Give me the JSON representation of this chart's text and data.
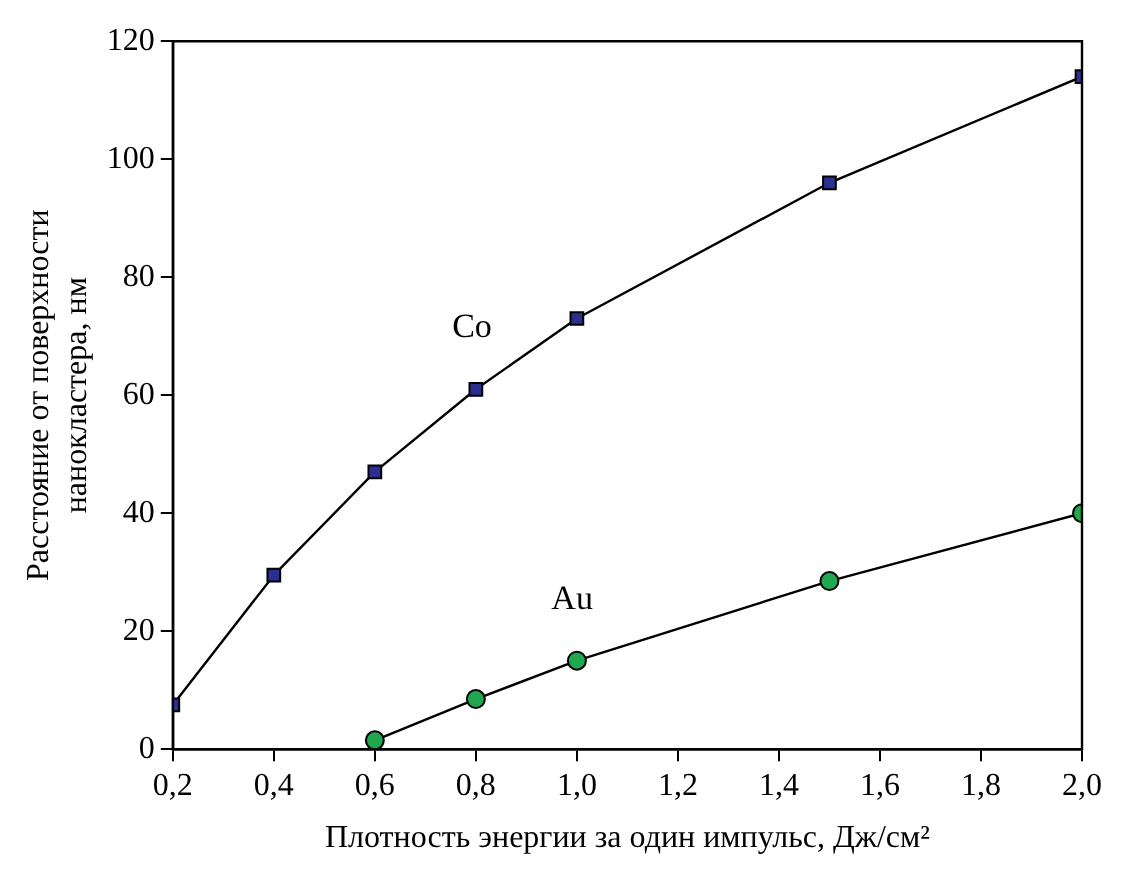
{
  "chart_data": {
    "type": "line",
    "xlabel": "Плотность энергии за один импульс, Дж/см²",
    "ylabel": "Расстояние от поверхности нанокластера, нм",
    "xlim": [
      0.2,
      2.0
    ],
    "xticks": [
      {
        "value": 0.2,
        "label": "0,2"
      },
      {
        "value": 0.4,
        "label": "0,4"
      },
      {
        "value": 0.6,
        "label": "0,6"
      },
      {
        "value": 0.8,
        "label": "0,8"
      },
      {
        "value": 1.0,
        "label": "1,0"
      },
      {
        "value": 1.2,
        "label": "1,2"
      },
      {
        "value": 1.4,
        "label": "1,4"
      },
      {
        "value": 1.6,
        "label": "1,6"
      },
      {
        "value": 1.8,
        "label": "1,8"
      },
      {
        "value": 2.0,
        "label": "2,0"
      }
    ],
    "ylim": [
      0,
      120
    ],
    "yticks": [
      0,
      20,
      40,
      60,
      80,
      100,
      120
    ],
    "grid": false,
    "legend": false,
    "series": [
      {
        "name": "Co",
        "color": "#2b2f8f",
        "marker": "square",
        "x": [
          0.2,
          0.4,
          0.6,
          0.8,
          1.0,
          1.5,
          2.0
        ],
        "values": [
          7.5,
          29.5,
          47,
          61,
          73,
          96,
          114
        ]
      },
      {
        "name": "Au",
        "color": "#1fa84f",
        "marker": "circle",
        "x": [
          0.6,
          0.8,
          1.0,
          1.5,
          2.0
        ],
        "values": [
          1.5,
          8.5,
          15,
          28.5,
          40
        ]
      }
    ]
  }
}
